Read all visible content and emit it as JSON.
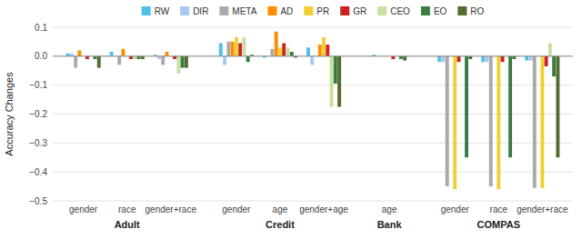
{
  "chart_data": {
    "type": "bar",
    "y_label": "Accuracy Changes",
    "categories": [
      "gender",
      "race",
      "gender+race",
      "gender",
      "age",
      "gender+age",
      "age",
      "gender",
      "race",
      "gender+race"
    ],
    "category_groups": [
      "Adult",
      "Adult",
      "Adult",
      "Credit",
      "Credit",
      "Credit",
      "Bank",
      "COMPAS",
      "COMPAS",
      "COMPAS"
    ],
    "series": [
      {
        "name": "RW",
        "color": "#4fc1e9",
        "values": [
          0.01,
          0.015,
          0.005,
          0.045,
          -0.005,
          0.03,
          0.005,
          -0.02,
          -0.02,
          -0.015
        ]
      },
      {
        "name": "DIR",
        "color": "#a8c8f0",
        "values": [
          0.01,
          0.0,
          -0.01,
          -0.03,
          0.0,
          -0.03,
          0.0,
          -0.02,
          -0.02,
          -0.015
        ]
      },
      {
        "name": "META",
        "color": "#aaaaaa",
        "values": [
          -0.04,
          -0.03,
          -0.03,
          0.05,
          0.025,
          0.0,
          0.0,
          -0.45,
          -0.45,
          -0.455
        ]
      },
      {
        "name": "AD",
        "color": "#ff8c00",
        "values": [
          0.02,
          0.025,
          0.015,
          0.05,
          0.085,
          0.04,
          0.0,
          0.0,
          0.0,
          0.0
        ]
      },
      {
        "name": "PR",
        "color": "#f0d030",
        "values": [
          0.0,
          0.0,
          0.0,
          0.065,
          0.03,
          0.065,
          0.0,
          -0.46,
          -0.46,
          -0.455
        ]
      },
      {
        "name": "GR",
        "color": "#cc2222",
        "values": [
          -0.01,
          -0.01,
          -0.01,
          0.045,
          0.045,
          0.04,
          -0.01,
          -0.02,
          -0.02,
          -0.035
        ]
      },
      {
        "name": "CEO",
        "color": "#c8e0a0",
        "values": [
          0.0,
          -0.01,
          -0.06,
          0.065,
          0.03,
          -0.175,
          0.0,
          0.0,
          0.0,
          0.045
        ]
      },
      {
        "name": "EO",
        "color": "#3a7d44",
        "values": [
          -0.01,
          -0.01,
          -0.04,
          -0.02,
          0.015,
          -0.095,
          -0.01,
          -0.35,
          -0.35,
          -0.07
        ]
      },
      {
        "name": "RO",
        "color": "#556b2f",
        "values": [
          -0.04,
          -0.01,
          -0.04,
          0.005,
          -0.005,
          -0.175,
          -0.015,
          -0.01,
          -0.01,
          -0.35
        ]
      }
    ],
    "ylim": [
      -0.5,
      0.1
    ],
    "yticks": [
      0.1,
      {
        "value": 0.0,
        "label": "0.0"
      },
      {
        "value": -0.1,
        "label": "−0.1"
      },
      {
        "value": -0.2,
        "label": "−0.2"
      },
      {
        "value": -0.3,
        "label": "−0.3"
      },
      {
        "value": -0.4,
        "label": "−0.4"
      },
      {
        "value": -0.5,
        "label": "−0.5"
      }
    ],
    "grid": true,
    "legend": "top"
  }
}
